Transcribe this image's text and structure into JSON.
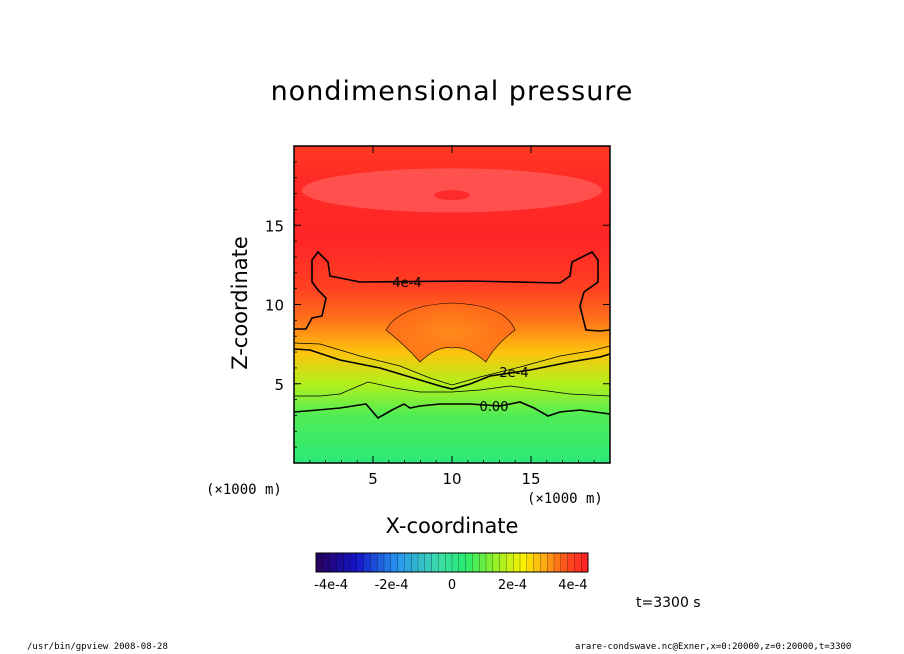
{
  "chart_data": {
    "type": "heatmap",
    "title": "nondimensional pressure",
    "xlabel": "X-coordinate",
    "ylabel": "Z-coordinate",
    "x_unit": "(×1000 m)",
    "z_unit": "(×1000 m)",
    "xlim": [
      0,
      20
    ],
    "ylim": [
      0,
      20
    ],
    "xticks": [
      "5",
      "10",
      "15"
    ],
    "yticks": [
      "5",
      "10",
      "15"
    ],
    "colorbar": {
      "tick_labels": [
        "-4e-4",
        "-2e-4",
        "0",
        "2e-4",
        "4e-4"
      ],
      "range": [
        -0.00045,
        0.00045
      ]
    },
    "contours": [
      {
        "label": "4e-4",
        "level": 0.0004
      },
      {
        "label": "2e-4",
        "level": 0.0002
      },
      {
        "label": "0.00",
        "level": 0.0
      }
    ],
    "field_rows": [
      {
        "z": 0,
        "value": 3e-05
      },
      {
        "z": 3,
        "value": 8e-05
      },
      {
        "z": 5,
        "value": 0.00017
      },
      {
        "z": 7,
        "value": 0.00028
      },
      {
        "z": 9,
        "value": 0.00035
      },
      {
        "z": 11,
        "value": 0.0004
      },
      {
        "z": 14,
        "value": 0.00044
      },
      {
        "z": 18,
        "value": 0.00043
      },
      {
        "z": 20,
        "value": 0.00041
      }
    ],
    "colors": {
      "high": "#ff2020",
      "mid": "#ffee00",
      "low": "#20e870",
      "neg": "#2020a0"
    }
  },
  "time_label": "t=3300 s",
  "footer": {
    "left": "/usr/bin/gpview   2008-08-28",
    "right": "arare-condswave.nc@Exner,x=0:20000,z=0:20000,t=3300"
  }
}
